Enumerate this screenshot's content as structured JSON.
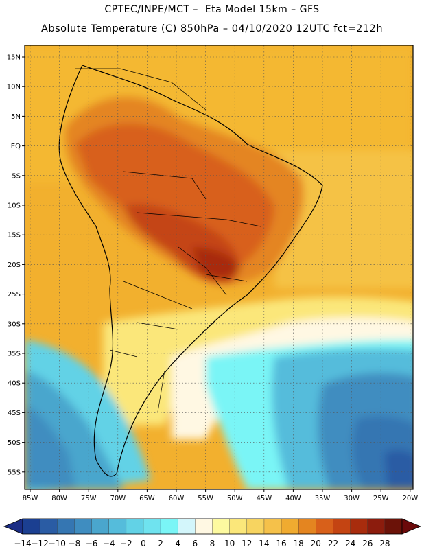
{
  "header": {
    "line1": "CPTEC/INPE/MCT –  Eta Model 15km – GFS",
    "line2": "Absolute Temperature (C) 850hPa – 04/10/2020 12UTC fct=212h"
  },
  "map": {
    "lat_labels": [
      "15N",
      "10N",
      "5N",
      "EQ",
      "5S",
      "10S",
      "15S",
      "20S",
      "25S",
      "30S",
      "35S",
      "40S",
      "45S",
      "50S",
      "55S"
    ],
    "lon_labels": [
      "85W",
      "80W",
      "75W",
      "70W",
      "65W",
      "60W",
      "55W",
      "50W",
      "45W",
      "40W",
      "35W",
      "30W",
      "25W",
      "20W"
    ],
    "region": "South America",
    "variable": "temperature"
  },
  "colorbar": {
    "labels": [
      "−14",
      "−12",
      "−10",
      "−8",
      "−6",
      "−4",
      "−2",
      "0",
      "2",
      "4",
      "6",
      "8",
      "10",
      "12",
      "14",
      "16",
      "18",
      "20",
      "22",
      "24",
      "26",
      "28"
    ],
    "colors": [
      "#1b3f91",
      "#2a5ca4",
      "#3576b2",
      "#3f8dc0",
      "#4aa6cd",
      "#55bcdb",
      "#62d2e6",
      "#6fe3ef",
      "#7af5f6",
      "#d3f6fb",
      "#fff8e3",
      "#fdfaa0",
      "#fbe77a",
      "#f7d460",
      "#f5c14a",
      "#f0ab30",
      "#e48520",
      "#d8601a",
      "#c44412",
      "#a82c0d",
      "#8c1c0d",
      "#6b1208"
    ],
    "end_low": "#1b2d85",
    "end_high": "#6b0a0a"
  }
}
